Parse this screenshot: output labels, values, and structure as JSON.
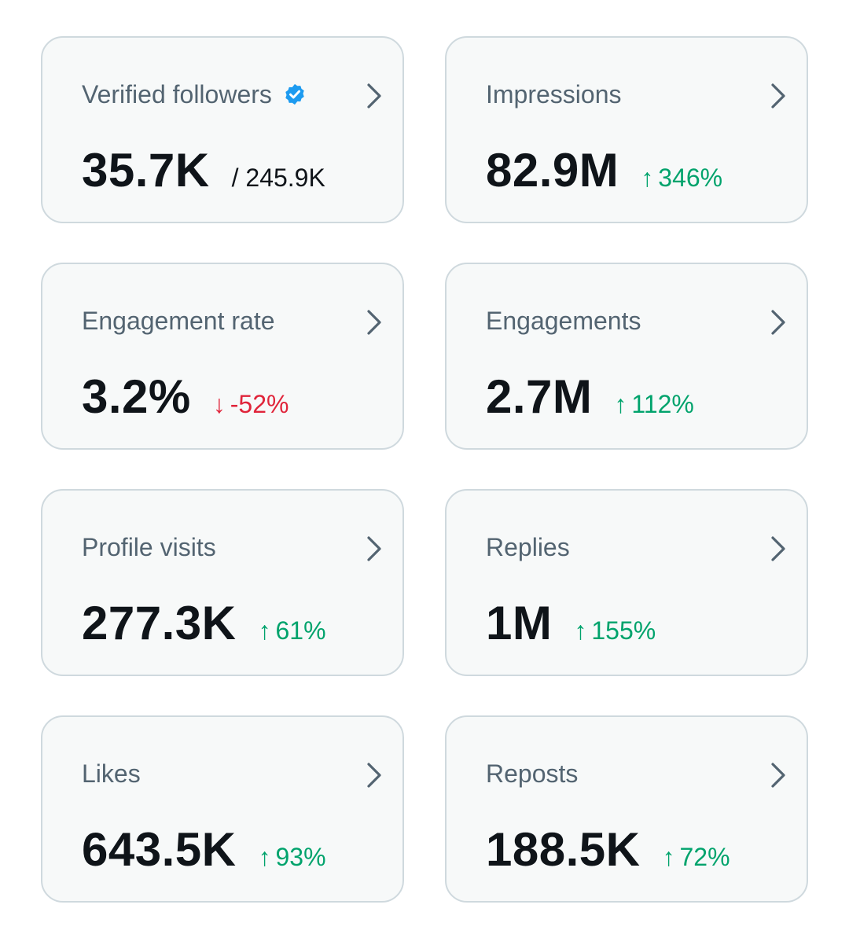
{
  "colors": {
    "up": "#00a36c",
    "down": "#e0243a",
    "verified": "#1d9bf0"
  },
  "cards": [
    {
      "title": "Verified followers",
      "value": "35.7K",
      "sub": "/ 245.9K"
    },
    {
      "title": "Impressions",
      "value": "82.9M",
      "arrow": "↑",
      "delta": "346%"
    },
    {
      "title": "Engagement rate",
      "value": "3.2%",
      "arrow": "↓",
      "delta": "-52%"
    },
    {
      "title": "Engagements",
      "value": "2.7M",
      "arrow": "↑",
      "delta": "112%"
    },
    {
      "title": "Profile visits",
      "value": "277.3K",
      "arrow": "↑",
      "delta": "61%"
    },
    {
      "title": "Replies",
      "value": "1M",
      "arrow": "↑",
      "delta": "155%"
    },
    {
      "title": "Likes",
      "value": "643.5K",
      "arrow": "↑",
      "delta": "93%"
    },
    {
      "title": "Reposts",
      "value": "188.5K",
      "arrow": "↑",
      "delta": "72%"
    }
  ]
}
